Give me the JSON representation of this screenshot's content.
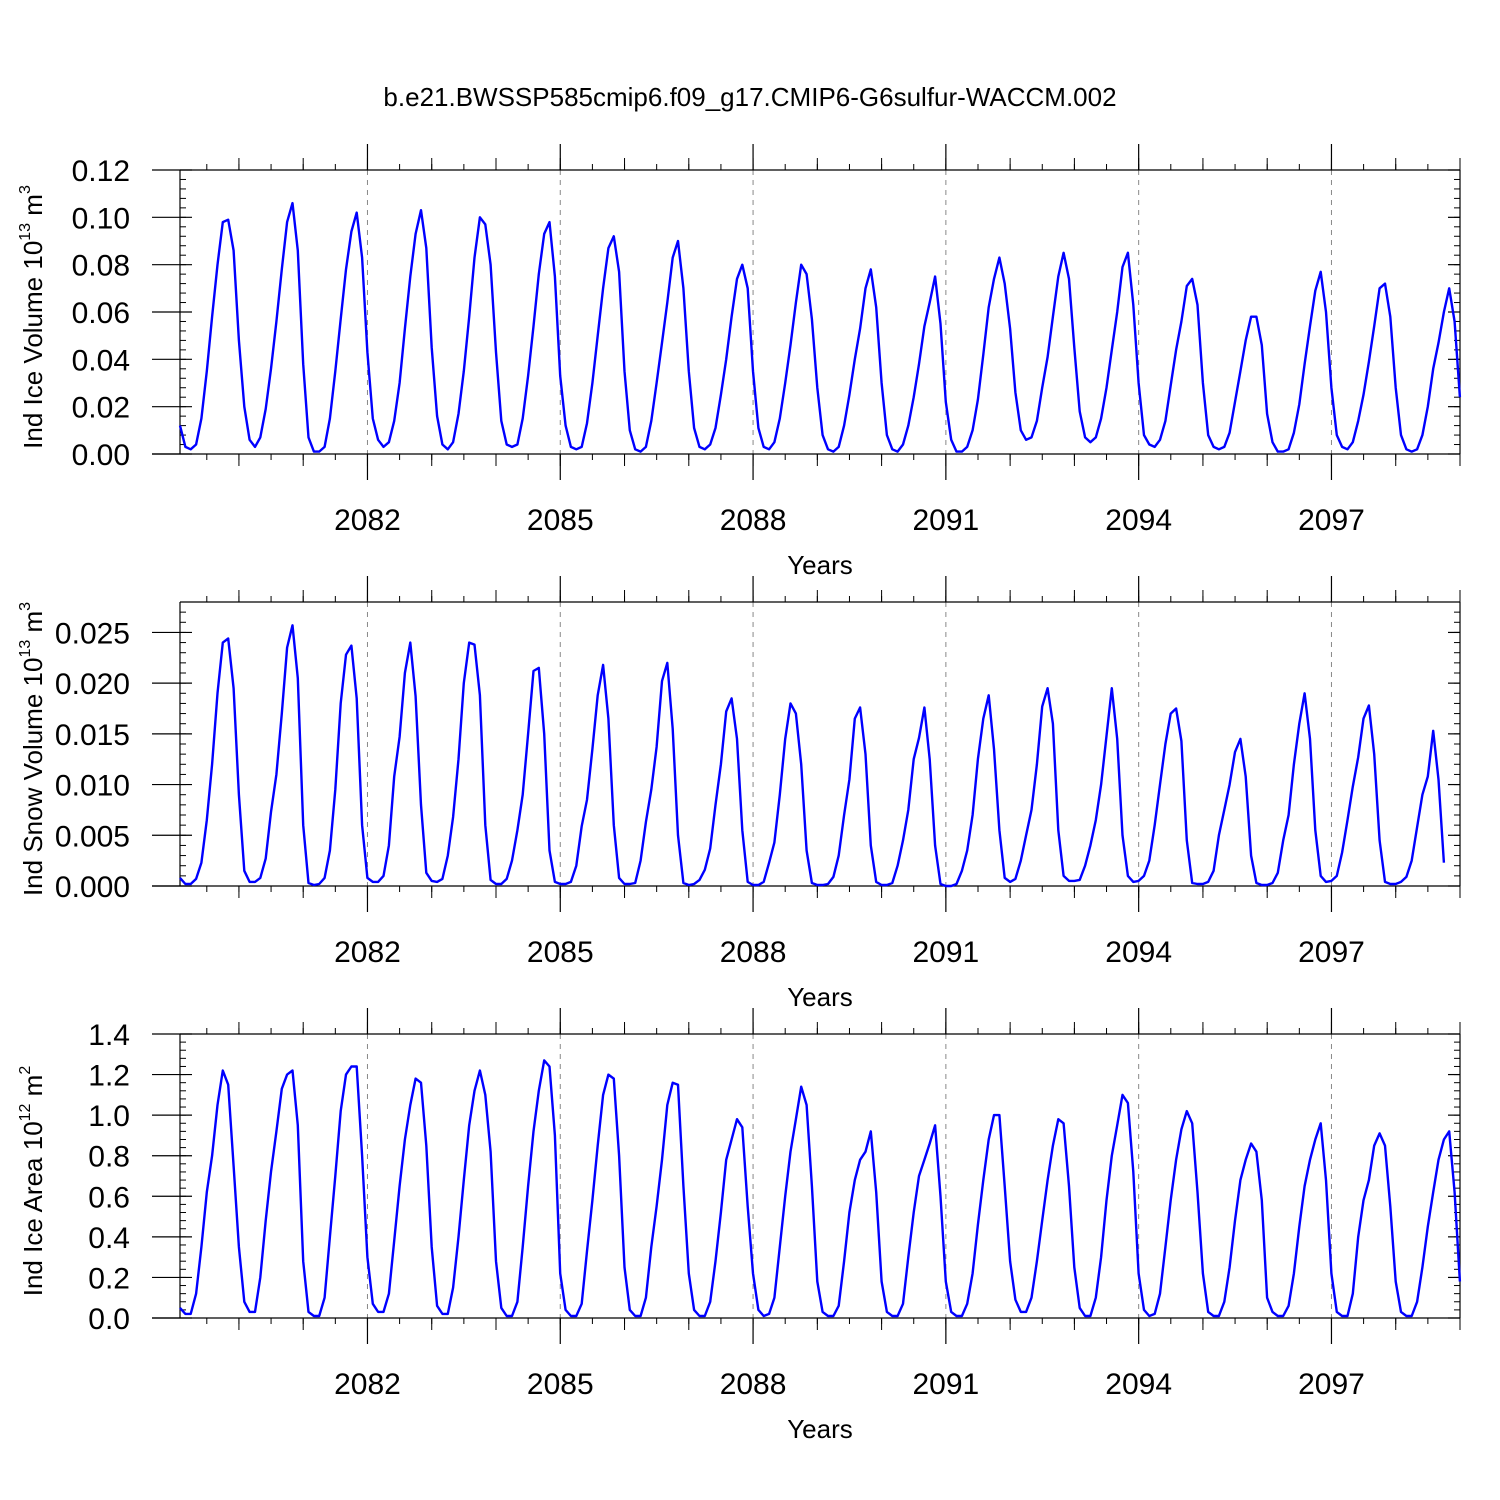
{
  "title": "b.e21.BWSSP585cmip6.f09_g17.CMIP6-G6sulfur-WACCM.002",
  "chart_data": [
    {
      "type": "line",
      "ylabel": "Ind Ice Volume 10",
      "ylabel_exp": "13",
      "ylabel_unit": " m",
      "ylabel_unit_exp": "3",
      "xlabel": "Years",
      "xlim": [
        2079.083,
        2099.0
      ],
      "ylim": [
        0,
        0.12
      ],
      "x_ticks": [
        2082,
        2085,
        2088,
        2091,
        2094,
        2097
      ],
      "x_tick_labels": [
        "2082",
        "2085",
        "2088",
        "2091",
        "2094",
        "2097"
      ],
      "y_ticks": [
        0,
        0.02,
        0.04,
        0.06,
        0.08,
        0.1,
        0.12
      ],
      "y_tick_labels": [
        "0.00",
        "0.02",
        "0.04",
        "0.06",
        "0.08",
        "0.10",
        "0.12"
      ],
      "grid": "vertical dashed at labeled years",
      "series": [
        {
          "color": "#0000ff",
          "x_start": 2079.083,
          "x_step": 0.08333,
          "values": [
            0.012,
            0.003,
            0.002,
            0.004,
            0.015,
            0.035,
            0.058,
            0.08,
            0.098,
            0.099,
            0.086,
            0.048,
            0.02,
            0.006,
            0.003,
            0.007,
            0.019,
            0.036,
            0.056,
            0.078,
            0.098,
            0.106,
            0.086,
            0.038,
            0.007,
            0.001,
            0.001,
            0.003,
            0.015,
            0.035,
            0.057,
            0.078,
            0.094,
            0.102,
            0.083,
            0.043,
            0.015,
            0.006,
            0.003,
            0.005,
            0.014,
            0.03,
            0.053,
            0.075,
            0.093,
            0.103,
            0.087,
            0.045,
            0.016,
            0.004,
            0.002,
            0.005,
            0.017,
            0.035,
            0.058,
            0.083,
            0.1,
            0.097,
            0.08,
            0.043,
            0.014,
            0.004,
            0.003,
            0.004,
            0.015,
            0.033,
            0.054,
            0.076,
            0.093,
            0.098,
            0.075,
            0.033,
            0.012,
            0.003,
            0.002,
            0.003,
            0.013,
            0.03,
            0.05,
            0.07,
            0.087,
            0.092,
            0.077,
            0.035,
            0.01,
            0.002,
            0.001,
            0.003,
            0.014,
            0.03,
            0.047,
            0.064,
            0.083,
            0.09,
            0.07,
            0.035,
            0.011,
            0.003,
            0.002,
            0.004,
            0.011,
            0.025,
            0.04,
            0.058,
            0.074,
            0.08,
            0.07,
            0.035,
            0.011,
            0.003,
            0.002,
            0.005,
            0.015,
            0.03,
            0.046,
            0.064,
            0.08,
            0.076,
            0.057,
            0.028,
            0.008,
            0.002,
            0.001,
            0.003,
            0.012,
            0.025,
            0.04,
            0.053,
            0.07,
            0.078,
            0.062,
            0.03,
            0.008,
            0.002,
            0.001,
            0.004,
            0.012,
            0.024,
            0.038,
            0.054,
            0.064,
            0.075,
            0.055,
            0.022,
            0.006,
            0.001,
            0.001,
            0.003,
            0.01,
            0.023,
            0.042,
            0.062,
            0.074,
            0.083,
            0.072,
            0.053,
            0.026,
            0.01,
            0.006,
            0.007,
            0.014,
            0.028,
            0.041,
            0.058,
            0.075,
            0.085,
            0.074,
            0.045,
            0.018,
            0.007,
            0.005,
            0.007,
            0.015,
            0.028,
            0.044,
            0.06,
            0.079,
            0.085,
            0.063,
            0.03,
            0.008,
            0.004,
            0.003,
            0.006,
            0.014,
            0.029,
            0.044,
            0.056,
            0.071,
            0.074,
            0.063,
            0.03,
            0.008,
            0.003,
            0.002,
            0.003,
            0.009,
            0.022,
            0.035,
            0.048,
            0.058,
            0.058,
            0.046,
            0.017,
            0.005,
            0.001,
            0.001,
            0.002,
            0.009,
            0.021,
            0.038,
            0.054,
            0.069,
            0.077,
            0.06,
            0.028,
            0.008,
            0.003,
            0.002,
            0.005,
            0.014,
            0.025,
            0.039,
            0.054,
            0.07,
            0.072,
            0.058,
            0.028,
            0.008,
            0.002,
            0.001,
            0.002,
            0.008,
            0.02,
            0.036,
            0.047,
            0.06,
            0.07,
            0.056,
            0.024
          ]
        }
      ]
    },
    {
      "type": "line",
      "ylabel": "Ind Snow Volume 10",
      "ylabel_exp": "13",
      "ylabel_unit": " m",
      "ylabel_unit_exp": "3",
      "xlabel": "Years",
      "xlim": [
        2079.083,
        2099.0
      ],
      "ylim": [
        0,
        0.028
      ],
      "x_ticks": [
        2082,
        2085,
        2088,
        2091,
        2094,
        2097
      ],
      "x_tick_labels": [
        "2082",
        "2085",
        "2088",
        "2091",
        "2094",
        "2097"
      ],
      "y_ticks": [
        0,
        0.005,
        0.01,
        0.015,
        0.02,
        0.025
      ],
      "y_tick_labels": [
        "0.000",
        "0.005",
        "0.010",
        "0.015",
        "0.020",
        "0.025"
      ],
      "grid": "vertical dashed at labeled years",
      "series": [
        {
          "color": "#0000ff",
          "x_start": 2079.083,
          "x_step": 0.08333,
          "values": [
            0.0008,
            0.0002,
            0.0002,
            0.0007,
            0.0023,
            0.0065,
            0.012,
            0.019,
            0.024,
            0.0244,
            0.0195,
            0.009,
            0.0015,
            0.0004,
            0.0004,
            0.0008,
            0.0027,
            0.0073,
            0.011,
            0.017,
            0.0235,
            0.0257,
            0.0205,
            0.006,
            0.0003,
            0.0001,
            0.0002,
            0.0008,
            0.0035,
            0.0095,
            0.018,
            0.0228,
            0.0237,
            0.0185,
            0.006,
            0.0008,
            0.0004,
            0.0004,
            0.001,
            0.004,
            0.0108,
            0.0147,
            0.021,
            0.024,
            0.0187,
            0.008,
            0.0013,
            0.0005,
            0.0004,
            0.0007,
            0.003,
            0.0068,
            0.0125,
            0.02,
            0.024,
            0.0238,
            0.0188,
            0.006,
            0.0006,
            0.0002,
            0.0002,
            0.0007,
            0.0025,
            0.0055,
            0.009,
            0.015,
            0.0212,
            0.0215,
            0.015,
            0.0035,
            0.0004,
            0.0002,
            0.0002,
            0.0004,
            0.002,
            0.0059,
            0.0085,
            0.0135,
            0.0188,
            0.0218,
            0.0165,
            0.006,
            0.0008,
            0.0002,
            0.0002,
            0.0003,
            0.0025,
            0.0063,
            0.0095,
            0.0137,
            0.0202,
            0.022,
            0.0155,
            0.005,
            0.0003,
            0.0001,
            0.0002,
            0.0006,
            0.0016,
            0.0037,
            0.008,
            0.012,
            0.0172,
            0.0185,
            0.0145,
            0.0055,
            0.0004,
            0.0001,
            0.0001,
            0.0004,
            0.0023,
            0.0043,
            0.009,
            0.0145,
            0.018,
            0.017,
            0.012,
            0.0035,
            0.0003,
            0.0001,
            0.0001,
            0.0002,
            0.0009,
            0.003,
            0.007,
            0.0105,
            0.0165,
            0.0176,
            0.013,
            0.004,
            0.0004,
            0.0001,
            0.0001,
            0.0003,
            0.002,
            0.0045,
            0.0075,
            0.0125,
            0.0146,
            0.0176,
            0.0125,
            0.004,
            0.0002,
            0.0,
            0.0,
            0.0002,
            0.0015,
            0.0035,
            0.007,
            0.0125,
            0.0165,
            0.0188,
            0.0135,
            0.0055,
            0.0008,
            0.0004,
            0.0007,
            0.0025,
            0.005,
            0.0075,
            0.012,
            0.0177,
            0.0195,
            0.016,
            0.0055,
            0.001,
            0.0005,
            0.0005,
            0.0006,
            0.002,
            0.004,
            0.0065,
            0.01,
            0.0148,
            0.0195,
            0.0145,
            0.005,
            0.001,
            0.0004,
            0.0005,
            0.001,
            0.0025,
            0.006,
            0.01,
            0.014,
            0.017,
            0.0175,
            0.0143,
            0.0045,
            0.0003,
            0.0002,
            0.0002,
            0.0004,
            0.0015,
            0.005,
            0.0075,
            0.01,
            0.0132,
            0.0145,
            0.0108,
            0.003,
            0.0003,
            0.0001,
            0.0001,
            0.0003,
            0.0013,
            0.0045,
            0.007,
            0.012,
            0.016,
            0.019,
            0.0145,
            0.0055,
            0.001,
            0.0004,
            0.0005,
            0.001,
            0.0033,
            0.0065,
            0.0098,
            0.0127,
            0.0165,
            0.0178,
            0.013,
            0.0045,
            0.0004,
            0.0002,
            0.0002,
            0.0004,
            0.0009,
            0.0025,
            0.0058,
            0.009,
            0.0108,
            0.0153,
            0.0105,
            0.0023
          ]
        }
      ]
    },
    {
      "type": "line",
      "ylabel": "Ind Ice Area 10",
      "ylabel_exp": "12",
      "ylabel_unit": " m",
      "ylabel_unit_exp": "2",
      "xlabel": "Years",
      "xlim": [
        2079.083,
        2099.0
      ],
      "ylim": [
        0,
        1.4
      ],
      "x_ticks": [
        2082,
        2085,
        2088,
        2091,
        2094,
        2097
      ],
      "x_tick_labels": [
        "2082",
        "2085",
        "2088",
        "2091",
        "2094",
        "2097"
      ],
      "y_ticks": [
        0,
        0.2,
        0.4,
        0.6,
        0.8,
        1.0,
        1.2,
        1.4
      ],
      "y_tick_labels": [
        "0.0",
        "0.2",
        "0.4",
        "0.6",
        "0.8",
        "1.0",
        "1.2",
        "1.4"
      ],
      "grid": "vertical dashed at labeled years",
      "series": [
        {
          "color": "#0000ff",
          "x_start": 2079.083,
          "x_step": 0.08333,
          "values": [
            0.05,
            0.02,
            0.02,
            0.12,
            0.35,
            0.62,
            0.8,
            1.05,
            1.22,
            1.15,
            0.75,
            0.35,
            0.08,
            0.03,
            0.03,
            0.2,
            0.48,
            0.72,
            0.92,
            1.13,
            1.2,
            1.22,
            0.95,
            0.28,
            0.03,
            0.01,
            0.01,
            0.1,
            0.4,
            0.7,
            1.02,
            1.2,
            1.24,
            1.24,
            0.8,
            0.3,
            0.07,
            0.03,
            0.03,
            0.12,
            0.38,
            0.65,
            0.88,
            1.05,
            1.18,
            1.16,
            0.85,
            0.35,
            0.06,
            0.02,
            0.02,
            0.15,
            0.4,
            0.68,
            0.95,
            1.12,
            1.22,
            1.1,
            0.82,
            0.28,
            0.05,
            0.01,
            0.01,
            0.08,
            0.35,
            0.65,
            0.92,
            1.12,
            1.27,
            1.24,
            0.9,
            0.22,
            0.04,
            0.01,
            0.01,
            0.07,
            0.33,
            0.58,
            0.85,
            1.1,
            1.2,
            1.18,
            0.8,
            0.25,
            0.04,
            0.01,
            0.01,
            0.1,
            0.35,
            0.55,
            0.78,
            1.05,
            1.16,
            1.15,
            0.65,
            0.22,
            0.04,
            0.01,
            0.01,
            0.08,
            0.28,
            0.52,
            0.78,
            0.88,
            0.98,
            0.94,
            0.55,
            0.22,
            0.04,
            0.01,
            0.02,
            0.1,
            0.35,
            0.6,
            0.82,
            0.98,
            1.14,
            1.05,
            0.65,
            0.18,
            0.03,
            0.01,
            0.01,
            0.06,
            0.28,
            0.52,
            0.68,
            0.78,
            0.82,
            0.92,
            0.62,
            0.18,
            0.03,
            0.01,
            0.01,
            0.07,
            0.3,
            0.52,
            0.7,
            0.78,
            0.86,
            0.95,
            0.6,
            0.18,
            0.03,
            0.01,
            0.01,
            0.07,
            0.22,
            0.46,
            0.68,
            0.88,
            1.0,
            1.0,
            0.65,
            0.28,
            0.09,
            0.03,
            0.03,
            0.1,
            0.28,
            0.48,
            0.68,
            0.85,
            0.98,
            0.96,
            0.65,
            0.25,
            0.05,
            0.01,
            0.01,
            0.1,
            0.3,
            0.58,
            0.8,
            0.95,
            1.1,
            1.06,
            0.72,
            0.22,
            0.04,
            0.01,
            0.02,
            0.12,
            0.35,
            0.58,
            0.78,
            0.93,
            1.02,
            0.96,
            0.62,
            0.22,
            0.03,
            0.01,
            0.01,
            0.08,
            0.25,
            0.48,
            0.68,
            0.78,
            0.86,
            0.82,
            0.58,
            0.1,
            0.03,
            0.01,
            0.01,
            0.06,
            0.22,
            0.45,
            0.65,
            0.78,
            0.88,
            0.96,
            0.68,
            0.22,
            0.03,
            0.01,
            0.01,
            0.12,
            0.4,
            0.58,
            0.68,
            0.85,
            0.91,
            0.85,
            0.55,
            0.18,
            0.03,
            0.01,
            0.01,
            0.08,
            0.25,
            0.45,
            0.62,
            0.78,
            0.88,
            0.92,
            0.62,
            0.18
          ]
        }
      ]
    }
  ]
}
